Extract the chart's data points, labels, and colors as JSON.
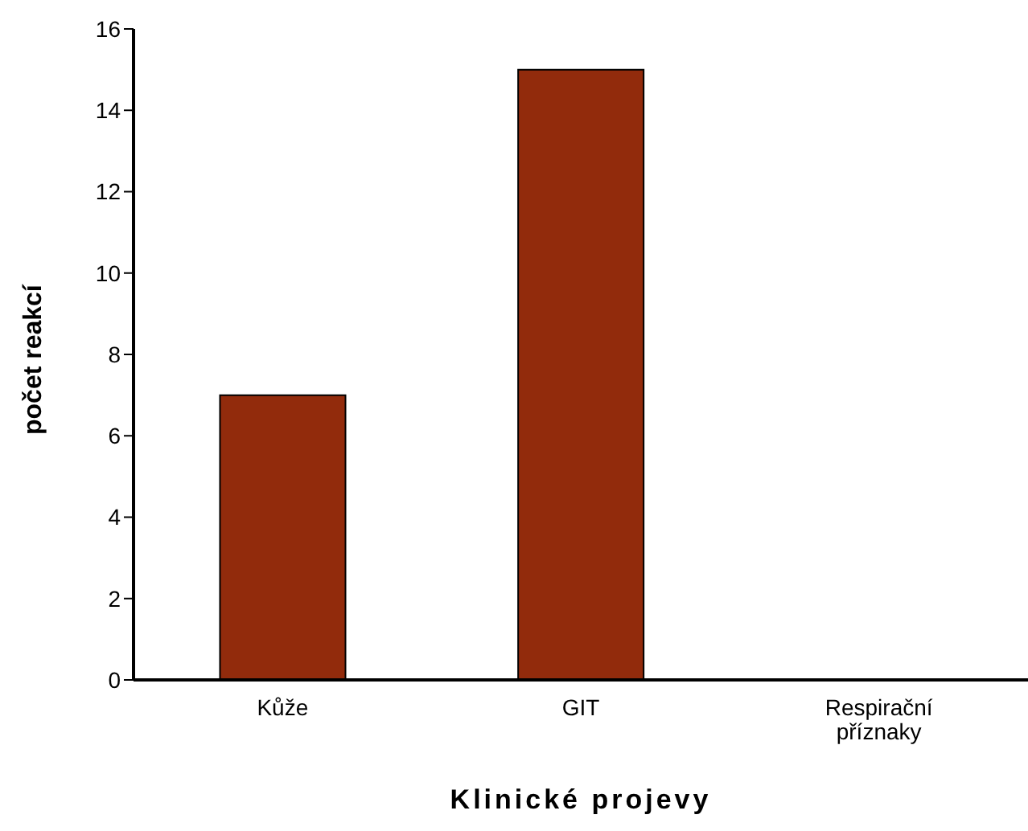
{
  "chart_data": {
    "type": "bar",
    "xlabel": "Klinické projevy",
    "ylabel": "počet reakcí",
    "categories": [
      "Kůže",
      "GIT",
      "Respirační příznaky"
    ],
    "values": [
      7,
      15,
      0
    ],
    "color": "#922b0c",
    "ylim": [
      0,
      16
    ],
    "yticks": [
      0,
      2,
      4,
      6,
      8,
      10,
      12,
      14,
      16
    ],
    "grid": false
  }
}
